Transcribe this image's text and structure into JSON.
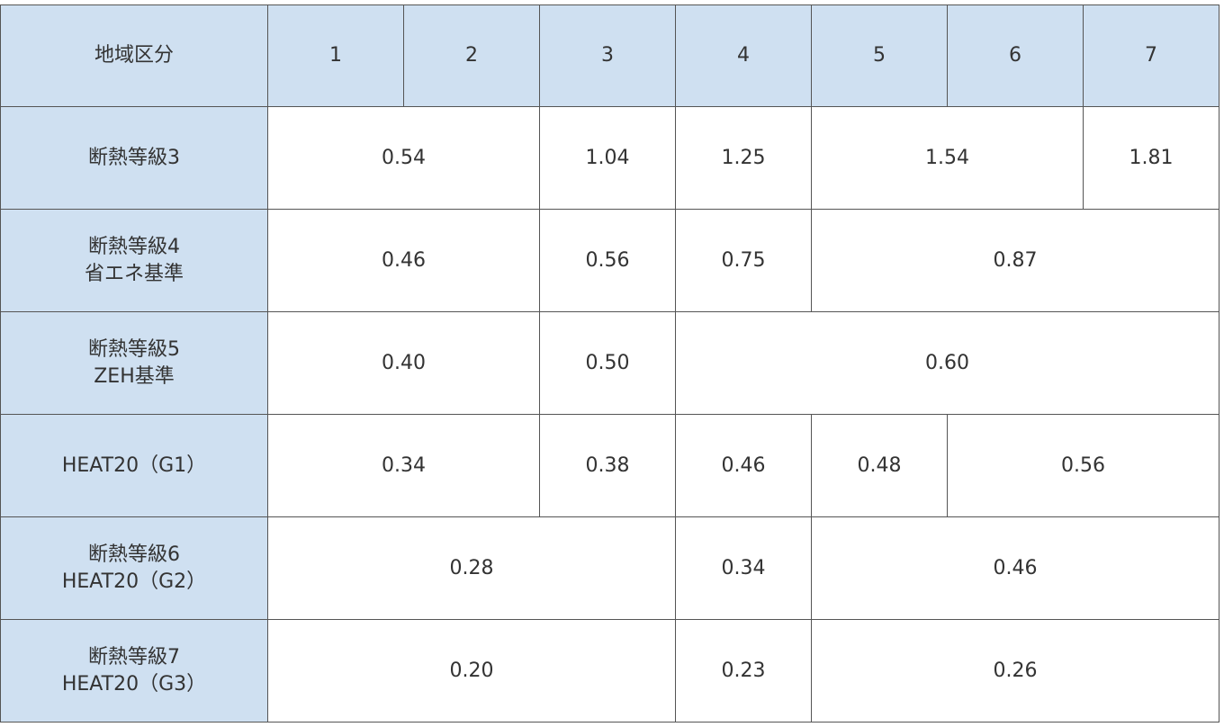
{
  "table": {
    "header": {
      "label": "地域区分",
      "regions": [
        "1",
        "2",
        "3",
        "4",
        "5",
        "6",
        "7"
      ]
    },
    "rows": [
      {
        "label": [
          "断熱等級3"
        ],
        "values": [
          "0.54",
          "1.04",
          "1.25",
          "1.54",
          "1.81"
        ]
      },
      {
        "label": [
          "断熱等級4",
          "省エネ基準"
        ],
        "values": [
          "0.46",
          "0.56",
          "0.75",
          "0.87"
        ]
      },
      {
        "label": [
          "断熱等級5",
          "ZEH基準"
        ],
        "values": [
          "0.40",
          "0.50",
          "0.60"
        ]
      },
      {
        "label": [
          "HEAT20（G1）"
        ],
        "values": [
          "0.34",
          "0.38",
          "0.46",
          "0.48",
          "0.56"
        ]
      },
      {
        "label": [
          "断熱等級6",
          "HEAT20（G2）"
        ],
        "values": [
          "0.28",
          "0.34",
          "0.46"
        ]
      },
      {
        "label": [
          "断熱等級7",
          "HEAT20（G3）"
        ],
        "values": [
          "0.20",
          "0.23",
          "0.26"
        ]
      }
    ]
  }
}
